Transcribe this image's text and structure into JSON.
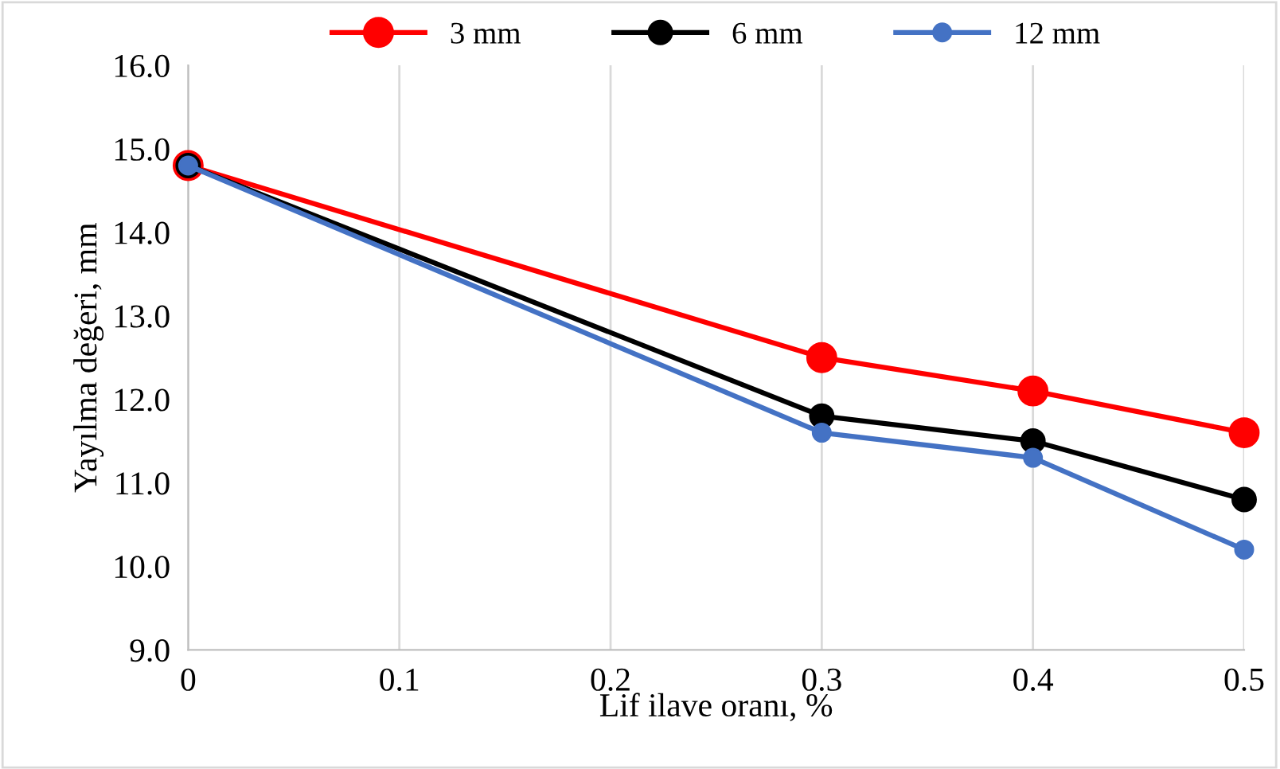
{
  "chart_data": {
    "type": "line",
    "xlabel": "Lif ilave oranı, %",
    "ylabel": "Yayılma değeri, mm",
    "x": [
      0,
      0.3,
      0.4,
      0.5
    ],
    "series": [
      {
        "name": "3 mm",
        "color": "#ff0000",
        "values": [
          14.8,
          12.5,
          12.1,
          11.6
        ]
      },
      {
        "name": "6 mm",
        "color": "#000000",
        "values": [
          14.8,
          11.8,
          11.5,
          10.8
        ]
      },
      {
        "name": "12 mm",
        "color": "#4472c4",
        "values": [
          14.8,
          11.6,
          11.3,
          10.2
        ]
      }
    ],
    "xlim": [
      0,
      0.5
    ],
    "xticks": [
      0,
      0.1,
      0.2,
      0.3,
      0.4,
      0.5
    ],
    "ylim": [
      9.0,
      16.0
    ],
    "yticks": [
      {
        "value": 9,
        "label": "9.0"
      },
      {
        "value": 10,
        "label": "10.0"
      },
      {
        "value": 11,
        "label": "11.0"
      },
      {
        "value": 12,
        "label": "12.0"
      },
      {
        "value": 13,
        "label": "13.0"
      },
      {
        "value": 14,
        "label": "14.0"
      },
      {
        "value": 15,
        "label": "15.0"
      },
      {
        "value": 16,
        "label": "16.0"
      }
    ],
    "grid": "x",
    "legend": "top",
    "marker": "circle",
    "line_style": "solid"
  }
}
